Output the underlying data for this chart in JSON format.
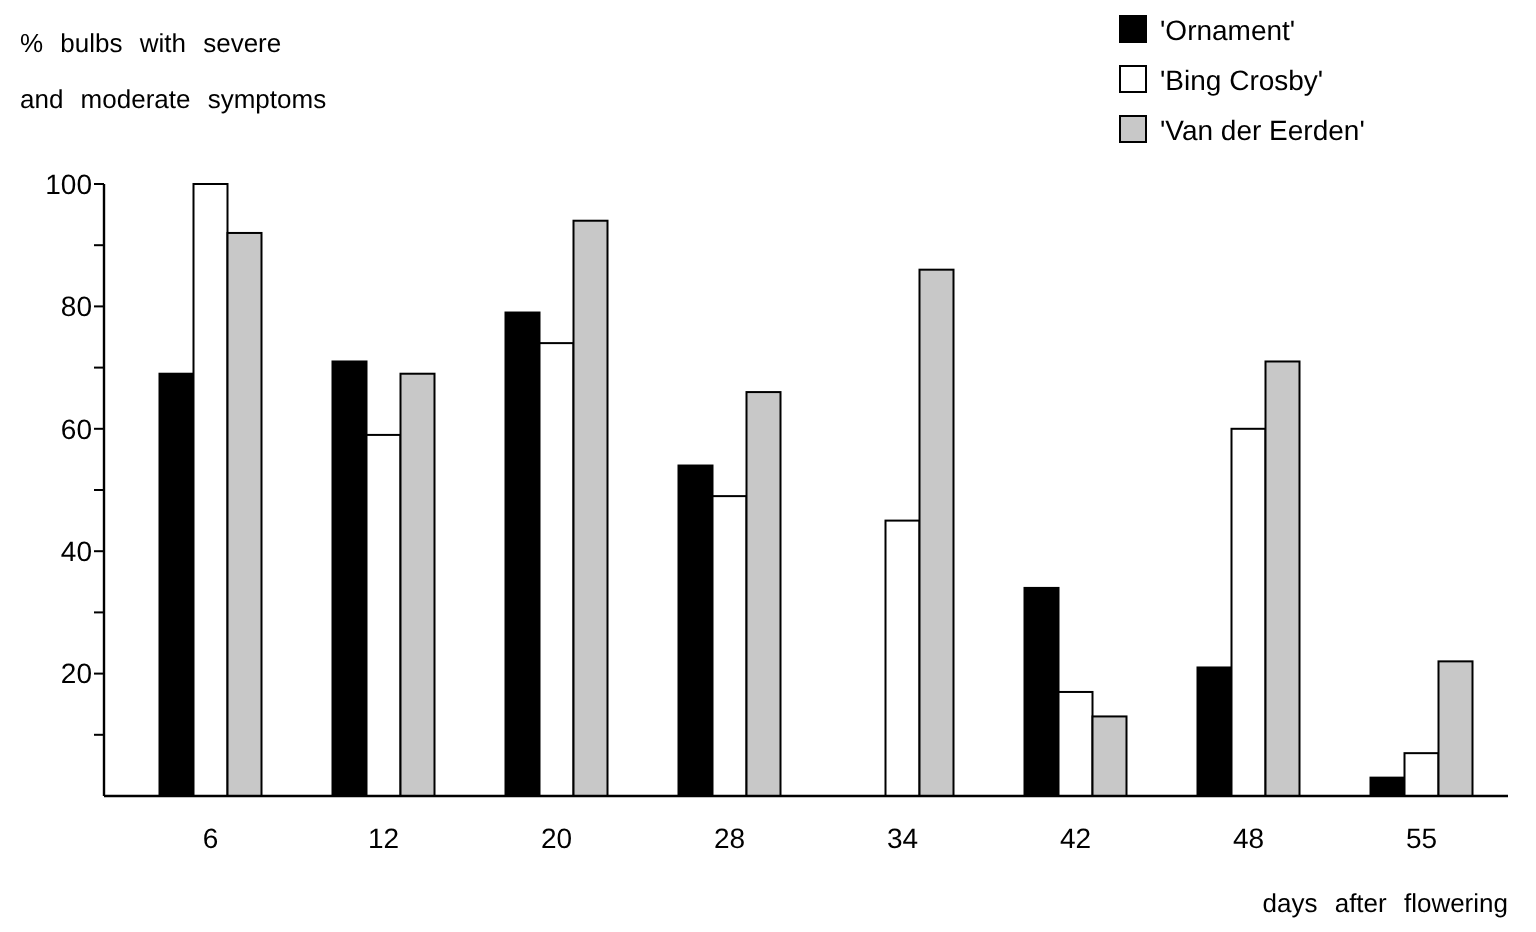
{
  "chart_data": {
    "type": "bar",
    "ylabel": "% bulbs with severe and moderate symptoms",
    "xlabel": "days after flowering",
    "categories": [
      "6",
      "12",
      "20",
      "28",
      "34",
      "42",
      "48",
      "55"
    ],
    "series": [
      {
        "name": "'Ornament'",
        "color": "#000000",
        "values": [
          69,
          71,
          79,
          54,
          0,
          34,
          21,
          3
        ]
      },
      {
        "name": "'Bing Crosby'",
        "color": "#ffffff",
        "values": [
          100,
          59,
          74,
          49,
          45,
          17,
          60,
          7
        ]
      },
      {
        "name": "'Van der Eerden'",
        "color": "#c8c8c8",
        "values": [
          92,
          69,
          94,
          66,
          86,
          13,
          71,
          22
        ]
      }
    ],
    "ylim": [
      0,
      100
    ],
    "yticks": [
      {
        "value": 10,
        "label": null
      },
      20,
      {
        "value": 30,
        "label": null
      },
      40,
      {
        "value": 50,
        "label": null
      },
      60,
      {
        "value": 70,
        "label": null
      },
      80,
      {
        "value": 90,
        "label": null
      },
      100
    ],
    "grid": false,
    "legend": "top right"
  }
}
